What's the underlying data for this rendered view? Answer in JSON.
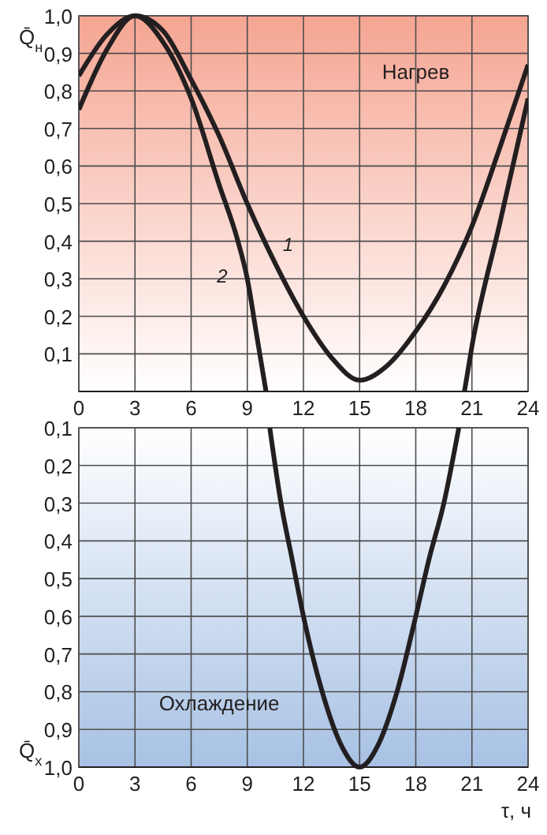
{
  "chart_data": [
    {
      "type": "line",
      "ylabel": "Q̄$_{н}$",
      "xlim": [
        0,
        24
      ],
      "xticks": [
        0,
        3,
        6,
        9,
        12,
        15,
        18,
        21,
        24
      ],
      "ylim": [
        0,
        1.0
      ],
      "yticks": [
        {
          "value": 0,
          "label": null
        },
        {
          "value": 0.1,
          "label": "0,1"
        },
        {
          "value": 0.2,
          "label": "0,2"
        },
        {
          "value": 0.3,
          "label": "0,3"
        },
        {
          "value": 0.4,
          "label": "0,4"
        },
        {
          "value": 0.5,
          "label": "0,5"
        },
        {
          "value": 0.6,
          "label": "0,6"
        },
        {
          "value": 0.7,
          "label": "0,7"
        },
        {
          "value": 0.8,
          "label": "0,8"
        },
        {
          "value": 0.9,
          "label": "0,9"
        },
        {
          "value": 1.0,
          "label": "1,0"
        }
      ],
      "grid": true,
      "marker": "none",
      "line_style": "solid",
      "series": [
        {
          "name": "1",
          "color": "#231f20",
          "x": [
            0,
            1.5,
            3,
            4.5,
            6,
            7.5,
            9,
            10.5,
            12,
            13.5,
            15,
            16.5,
            18,
            19.5,
            21,
            22.5,
            24
          ],
          "values": [
            0.84,
            0.95,
            1.0,
            0.96,
            0.83,
            0.68,
            0.5,
            0.34,
            0.2,
            0.09,
            0.03,
            0.07,
            0.16,
            0.28,
            0.44,
            0.65,
            0.87
          ]
        },
        {
          "name": "2",
          "color": "#231f20",
          "x": [
            0,
            1.5,
            3,
            4.5,
            6,
            7.5,
            8.5,
            9,
            9.5,
            10,
            null,
            20.6,
            21,
            22.5,
            24
          ],
          "values": [
            0.75,
            0.91,
            1.0,
            0.93,
            0.78,
            0.55,
            0.4,
            0.3,
            0.15,
            0,
            null,
            0,
            0.12,
            0.45,
            0.78
          ]
        }
      ],
      "annotations": [
        "Нагрев"
      ]
    },
    {
      "type": "line",
      "ylabel": "Q̄$_{х}$",
      "xlabel": "τ, ч",
      "xlim": [
        0,
        24
      ],
      "xticks": [
        0,
        3,
        6,
        9,
        12,
        15,
        18,
        21,
        24
      ],
      "ylim": [
        1.0,
        0.1
      ],
      "yticks": [
        {
          "value": 0.1,
          "label": "0,1"
        },
        {
          "value": 0.2,
          "label": "0,2"
        },
        {
          "value": 0.3,
          "label": "0,3"
        },
        {
          "value": 0.4,
          "label": "0,4"
        },
        {
          "value": 0.5,
          "label": "0,5"
        },
        {
          "value": 0.6,
          "label": "0,6"
        },
        {
          "value": 0.7,
          "label": "0,7"
        },
        {
          "value": 0.8,
          "label": "0,8"
        },
        {
          "value": 0.9,
          "label": "0,9"
        },
        {
          "value": 1.0,
          "label": "1,0"
        }
      ],
      "grid": true,
      "marker": "none",
      "line_style": "solid",
      "series": [
        {
          "color": "#231f20",
          "x": [
            10.2,
            10.8,
            11.4,
            12,
            13,
            14,
            15,
            16,
            17,
            18,
            18.7,
            19.5,
            20.3
          ],
          "values": [
            0.1,
            0.3,
            0.45,
            0.6,
            0.8,
            0.94,
            1.0,
            0.94,
            0.8,
            0.6,
            0.45,
            0.3,
            0.1
          ]
        }
      ],
      "annotations": [
        "Охлаждение"
      ]
    }
  ]
}
